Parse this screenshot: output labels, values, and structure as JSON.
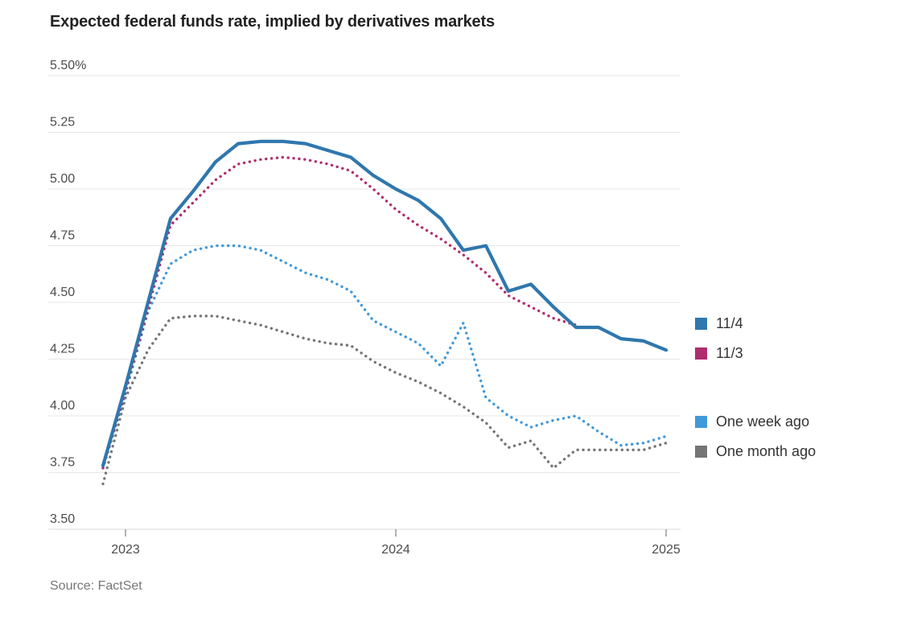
{
  "chart_data": {
    "type": "line",
    "title": "Expected federal funds rate, implied by derivatives markets",
    "source": "Source: FactSet",
    "y_unit": "%",
    "ylim": [
      3.5,
      5.5
    ],
    "grid": true,
    "y_ticks": [
      {
        "label": "5.50%",
        "value": 5.5
      },
      {
        "label": "5.25",
        "value": 5.25
      },
      {
        "label": "5.00",
        "value": 5.0
      },
      {
        "label": "4.75",
        "value": 4.75
      },
      {
        "label": "4.50",
        "value": 4.5
      },
      {
        "label": "4.25",
        "value": 4.25
      },
      {
        "label": "4.00",
        "value": 4.0
      },
      {
        "label": "3.75",
        "value": 3.75
      },
      {
        "label": "3.50",
        "value": 3.5
      }
    ],
    "x_ticks": [
      {
        "label": "2023",
        "month_index": 1
      },
      {
        "label": "2024",
        "month_index": 13
      },
      {
        "label": "2025",
        "month_index": 25
      }
    ],
    "x_months": [
      "2022-12",
      "2023-01",
      "2023-02",
      "2023-03",
      "2023-04",
      "2023-05",
      "2023-06",
      "2023-07",
      "2023-08",
      "2023-09",
      "2023-10",
      "2023-11",
      "2023-12",
      "2024-01",
      "2024-02",
      "2024-03",
      "2024-04",
      "2024-05",
      "2024-06",
      "2024-07",
      "2024-08",
      "2024-09",
      "2024-10",
      "2024-11",
      "2024-12",
      "2025-01"
    ],
    "series": [
      {
        "name": "11/4",
        "color": "#2f77ad",
        "style": "solid",
        "values": [
          3.78,
          4.13,
          4.5,
          4.87,
          4.99,
          5.12,
          5.2,
          5.21,
          5.21,
          5.2,
          5.17,
          5.14,
          5.06,
          5.0,
          4.95,
          4.87,
          4.73,
          4.75,
          4.55,
          4.58,
          4.48,
          4.39,
          4.39,
          4.34,
          4.33,
          4.29
        ]
      },
      {
        "name": "11/3",
        "color": "#b02d6e",
        "style": "dotted",
        "values": [
          3.77,
          4.11,
          4.47,
          4.84,
          4.94,
          5.04,
          5.11,
          5.13,
          5.14,
          5.13,
          5.11,
          5.08,
          5.0,
          4.91,
          4.84,
          4.78,
          4.71,
          4.63,
          4.53,
          4.48,
          4.43,
          4.4,
          null,
          null,
          null,
          null
        ]
      },
      {
        "name": "One week ago",
        "color": "#4199d9",
        "style": "dotted",
        "values": [
          3.77,
          4.1,
          4.46,
          4.67,
          4.73,
          4.75,
          4.75,
          4.73,
          4.68,
          4.63,
          4.6,
          4.55,
          4.42,
          4.37,
          4.32,
          4.22,
          4.41,
          4.08,
          4.0,
          3.95,
          3.98,
          4.0,
          3.93,
          3.87,
          3.88,
          3.91
        ]
      },
      {
        "name": "One month ago",
        "color": "#757575",
        "style": "dotted",
        "values": [
          3.7,
          4.08,
          4.29,
          4.43,
          4.44,
          4.44,
          4.42,
          4.4,
          4.37,
          4.34,
          4.32,
          4.31,
          4.24,
          4.19,
          4.15,
          4.1,
          4.04,
          3.97,
          3.86,
          3.89,
          3.77,
          3.85,
          3.85,
          3.85,
          3.85,
          3.88
        ]
      }
    ],
    "legend_groups": [
      {
        "items": [
          {
            "label": "11/4",
            "color": "#2f77ad"
          },
          {
            "label": "11/3",
            "color": "#b02d6e"
          }
        ]
      },
      {
        "items": [
          {
            "label": "One week ago",
            "color": "#4199d9"
          },
          {
            "label": "One month ago",
            "color": "#757575"
          }
        ]
      }
    ]
  },
  "colors": {
    "gridline": "#e7e7e7",
    "baseline": "#d8d8d8",
    "tick": "#999999",
    "axis_text": "#4d4d4d"
  }
}
